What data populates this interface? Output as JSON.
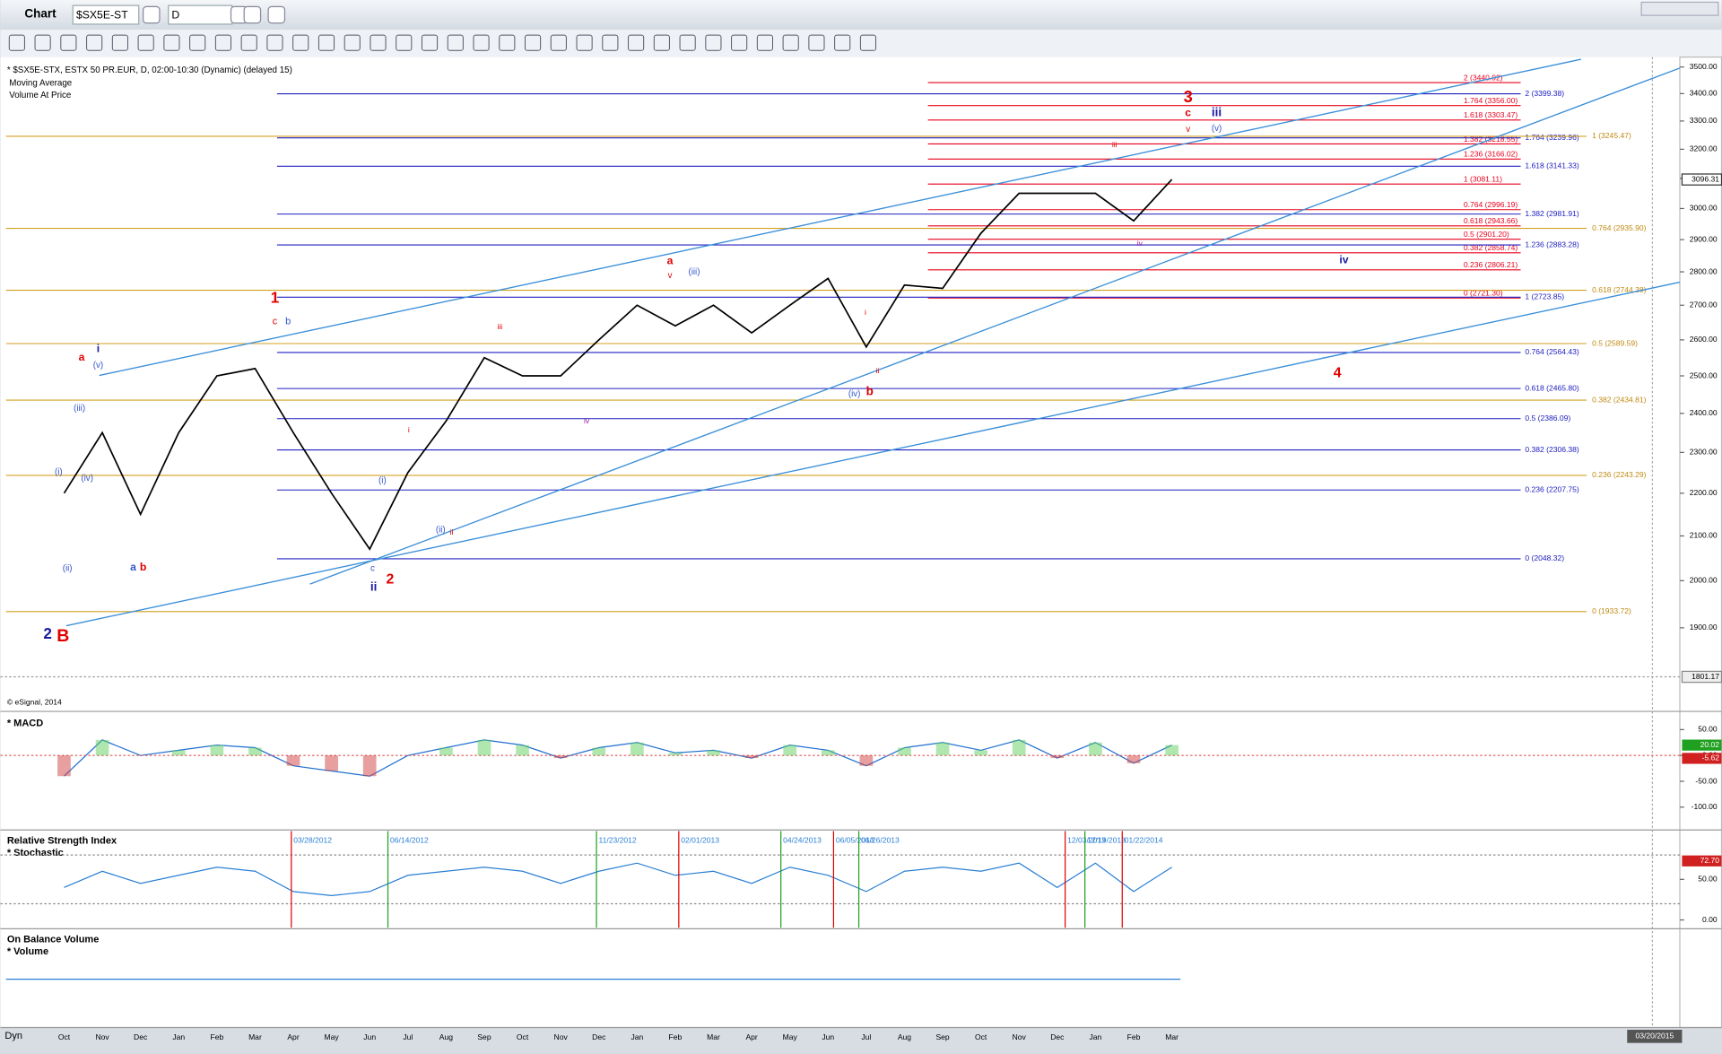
{
  "app": {
    "title": "Chart",
    "symbol": "$SX5E-ST",
    "interval": "D"
  },
  "chart_data": [
    {
      "type": "line",
      "title": "* $SX5E-STX, ESTX 50 PR.EUR, D, 02:00-10:30 (Dynamic) (delayed 15)",
      "studies": [
        "Moving Average",
        "Volume At Price"
      ],
      "copyright": "© eSignal, 2014",
      "categories": [
        "Oct",
        "Nov",
        "Dec",
        "Jan",
        "Feb",
        "Mar",
        "Apr",
        "May",
        "Jun",
        "Jul",
        "Aug",
        "Sep",
        "Oct",
        "Nov",
        "Dec",
        "Jan",
        "Feb",
        "Mar",
        "Apr",
        "May",
        "Jun",
        "Jul",
        "Aug",
        "Sep",
        "Oct",
        "Nov",
        "Dec",
        "Jan",
        "Feb",
        "Mar"
      ],
      "values": [
        2200,
        2350,
        2150,
        2350,
        2500,
        2520,
        2350,
        2200,
        2070,
        2250,
        2380,
        2550,
        2500,
        2500,
        2600,
        2700,
        2640,
        2700,
        2620,
        2700,
        2780,
        2580,
        2760,
        2750,
        2920,
        3050,
        3050,
        3050,
        2960,
        3096.31
      ],
      "color": "#000000",
      "log_scale": true,
      "ylim": [
        1783,
        3538
      ],
      "yticks": [
        {
          "value": 3500,
          "label": "3500.00"
        },
        {
          "value": 3400,
          "label": "3400.00"
        },
        {
          "value": 3300,
          "label": "3300.00"
        },
        {
          "value": 3200,
          "label": "3200.00"
        },
        {
          "value": 3100,
          "label": "3100.00"
        },
        {
          "value": 3000,
          "label": "3000.00"
        },
        {
          "value": 2900,
          "label": "2900.00"
        },
        {
          "value": 2800,
          "label": "2800.00"
        },
        {
          "value": 2700,
          "label": "2700.00"
        },
        {
          "value": 2600,
          "label": "2600.00"
        },
        {
          "value": 2500,
          "label": "2500.00"
        },
        {
          "value": 2400,
          "label": "2400.00"
        },
        {
          "value": 2300,
          "label": "2300.00"
        },
        {
          "value": 2200,
          "label": "2200.00"
        },
        {
          "value": 2100,
          "label": "2100.00"
        },
        {
          "value": 2000,
          "label": "2000.00"
        },
        {
          "value": 1900,
          "label": "1900.00"
        }
      ],
      "last_value": 3096.31,
      "cursor_value": 1801.17,
      "fib_levels": [
        {
          "color": "#e8001c",
          "levels": [
            {
              "label": "2 (3440.92)",
              "value": 3440.92
            },
            {
              "label": "1.764 (3356.00)",
              "value": 3356
            },
            {
              "label": "1.618 (3303.47)",
              "value": 3303.47
            },
            {
              "label": "1.382 (3218.55)",
              "value": 3218.55
            },
            {
              "label": "1.236 (3166.02)",
              "value": 3166.02
            },
            {
              "label": "1 (3081.11)",
              "value": 3081.11
            },
            {
              "label": "0.764 (2996.19)",
              "value": 2996.19
            },
            {
              "label": "0.618 (2943.66)",
              "value": 2943.66
            },
            {
              "label": "0.5 (2901.20)",
              "value": 2901.2
            },
            {
              "label": "0.382 (2858.74)",
              "value": 2858.74
            },
            {
              "label": "0.236 (2806.21)",
              "value": 2806.21
            },
            {
              "label": "0 (2721.30)",
              "value": 2721.3
            }
          ]
        },
        {
          "color": "#2020c0",
          "levels": [
            {
              "label": "2 (3399.38)",
              "value": 3399.38
            },
            {
              "label": "1.764 (3239.96)",
              "value": 3239.96
            },
            {
              "label": "1.618 (3141.33)",
              "value": 3141.33
            },
            {
              "label": "1.382 (2981.91)",
              "value": 2981.91
            },
            {
              "label": "1.236 (2883.28)",
              "value": 2883.28
            },
            {
              "label": "1 (2723.85)",
              "value": 2723.85
            },
            {
              "label": "0.764 (2564.43)",
              "value": 2564.43
            },
            {
              "label": "0.618 (2465.80)",
              "value": 2465.8
            },
            {
              "label": "0.5 (2386.09)",
              "value": 2386.09
            },
            {
              "label": "0.382 (2306.38)",
              "value": 2306.38
            },
            {
              "label": "0.236 (2207.75)",
              "value": 2207.75
            },
            {
              "label": "0 (2048.32)",
              "value": 2048.32
            }
          ]
        },
        {
          "color": "#d4a020",
          "levels": [
            {
              "label": "1 (3245.47)",
              "value": 3245.47
            },
            {
              "label": "0.764 (2935.90)",
              "value": 2935.9
            },
            {
              "label": "0.618 (2744.38)",
              "value": 2744.38
            },
            {
              "label": "0.5 (2589.59)",
              "value": 2589.59
            },
            {
              "label": "0.382 (2434.81)",
              "value": 2434.81
            },
            {
              "label": "0.236 (2243.29)",
              "value": 2243.29
            },
            {
              "label": "0 (1933.72)",
              "value": 1933.72
            }
          ]
        }
      ],
      "wave_labels": [
        {
          "text": "2",
          "color": "#1a1aa0"
        },
        {
          "text": "B",
          "color": "#e00000"
        },
        {
          "text": "a",
          "color": "#e00000"
        },
        {
          "text": "i",
          "color": "#1a1aa0"
        },
        {
          "text": "(v)",
          "color": "#3355cc"
        },
        {
          "text": "(iii)",
          "color": "#3355cc"
        },
        {
          "text": "(i)",
          "color": "#3355cc"
        },
        {
          "text": "(iv)",
          "color": "#3355cc"
        },
        {
          "text": "(ii)",
          "color": "#3355cc"
        },
        {
          "text": "a",
          "color": "#3355cc"
        },
        {
          "text": "b",
          "color": "#e00000"
        },
        {
          "text": "1",
          "color": "#e00000"
        },
        {
          "text": "c",
          "color": "#e00000"
        },
        {
          "text": "b",
          "color": "#3355cc"
        },
        {
          "text": "iii",
          "color": "#e00000"
        },
        {
          "text": "i",
          "color": "#e00000"
        },
        {
          "text": "(i)",
          "color": "#3355cc"
        },
        {
          "text": "(ii)",
          "color": "#3355cc"
        },
        {
          "text": "ii",
          "color": "#e00000"
        },
        {
          "text": "c",
          "color": "#3355cc"
        },
        {
          "text": "ii",
          "color": "#1a1aa0"
        },
        {
          "text": "2",
          "color": "#e00000"
        },
        {
          "text": "iv",
          "color": "#a020a0"
        },
        {
          "text": "a",
          "color": "#e00000"
        },
        {
          "text": "v",
          "color": "#e00000"
        },
        {
          "text": "(iii)",
          "color": "#3355cc"
        },
        {
          "text": "i",
          "color": "#e00000"
        },
        {
          "text": "ii",
          "color": "#e00000"
        },
        {
          "text": "(iv)",
          "color": "#3355cc"
        },
        {
          "text": "b",
          "color": "#e00000"
        },
        {
          "text": "3",
          "color": "#e00000"
        },
        {
          "text": "c",
          "color": "#e00000"
        },
        {
          "text": "v",
          "color": "#e00000"
        },
        {
          "text": "iii",
          "color": "#1a1aa0"
        },
        {
          "text": "(v)",
          "color": "#3355cc"
        },
        {
          "text": "iii",
          "color": "#e00000"
        },
        {
          "text": "iv",
          "color": "#a020a0"
        },
        {
          "text": "iv",
          "color": "#1a1aa0"
        },
        {
          "text": "4",
          "color": "#e00000"
        }
      ]
    },
    {
      "type": "line",
      "title": "* MACD",
      "values": [
        -40,
        30,
        0,
        10,
        20,
        15,
        -20,
        -30,
        -40,
        0,
        15,
        30,
        20,
        -5,
        15,
        25,
        5,
        10,
        -5,
        20,
        10,
        -20,
        15,
        25,
        10,
        30,
        -5,
        25,
        -15,
        20
      ],
      "color": "#1f6fd0",
      "ylim": [
        -142,
        81
      ],
      "yticks": [
        {
          "value": 50,
          "label": "50.00"
        },
        {
          "value": 0,
          "label": "0.00"
        },
        {
          "value": -50,
          "label": "-50.00"
        },
        {
          "value": -100,
          "label": "-100.00"
        }
      ],
      "current_values": [
        20.02,
        -5.62
      ]
    },
    {
      "type": "line",
      "title": "Relative Strength Index",
      "subtitle": "* Stochastic",
      "values": [
        40,
        60,
        45,
        55,
        65,
        60,
        35,
        30,
        35,
        55,
        60,
        65,
        60,
        45,
        60,
        70,
        55,
        60,
        45,
        65,
        55,
        35,
        60,
        65,
        60,
        70,
        40,
        70,
        35,
        65
      ],
      "color": "#2a7fd4",
      "ylim": [
        -9.5,
        109.5
      ],
      "yticks": [
        {
          "value": 50,
          "label": "50.00"
        },
        {
          "value": 0,
          "label": "0.00"
        }
      ],
      "current_value": {
        "value": 72.7,
        "label": "72.70"
      },
      "date_markers": [
        {
          "label": "03/28/2012",
          "color": "#e00000"
        },
        {
          "label": "06/14/2012",
          "color": "#20a020"
        },
        {
          "label": "11/23/2012",
          "color": "#20a020"
        },
        {
          "label": "02/01/2013",
          "color": "#e00000"
        },
        {
          "label": "04/24/2013",
          "color": "#20a020"
        },
        {
          "label": "06/05/2013",
          "color": "#e00000"
        },
        {
          "label": "06/26/2013",
          "color": "#20a020"
        },
        {
          "label": "12/03/2013",
          "color": "#e00000"
        },
        {
          "label": "12/19/2013",
          "color": "#20a020"
        },
        {
          "label": "01/22/2014",
          "color": "#e00000"
        }
      ]
    },
    {
      "type": "line",
      "title": "On Balance Volume",
      "subtitle": "* Volume"
    }
  ],
  "footer": {
    "mode": "Dyn",
    "date": "03/20/2015"
  }
}
